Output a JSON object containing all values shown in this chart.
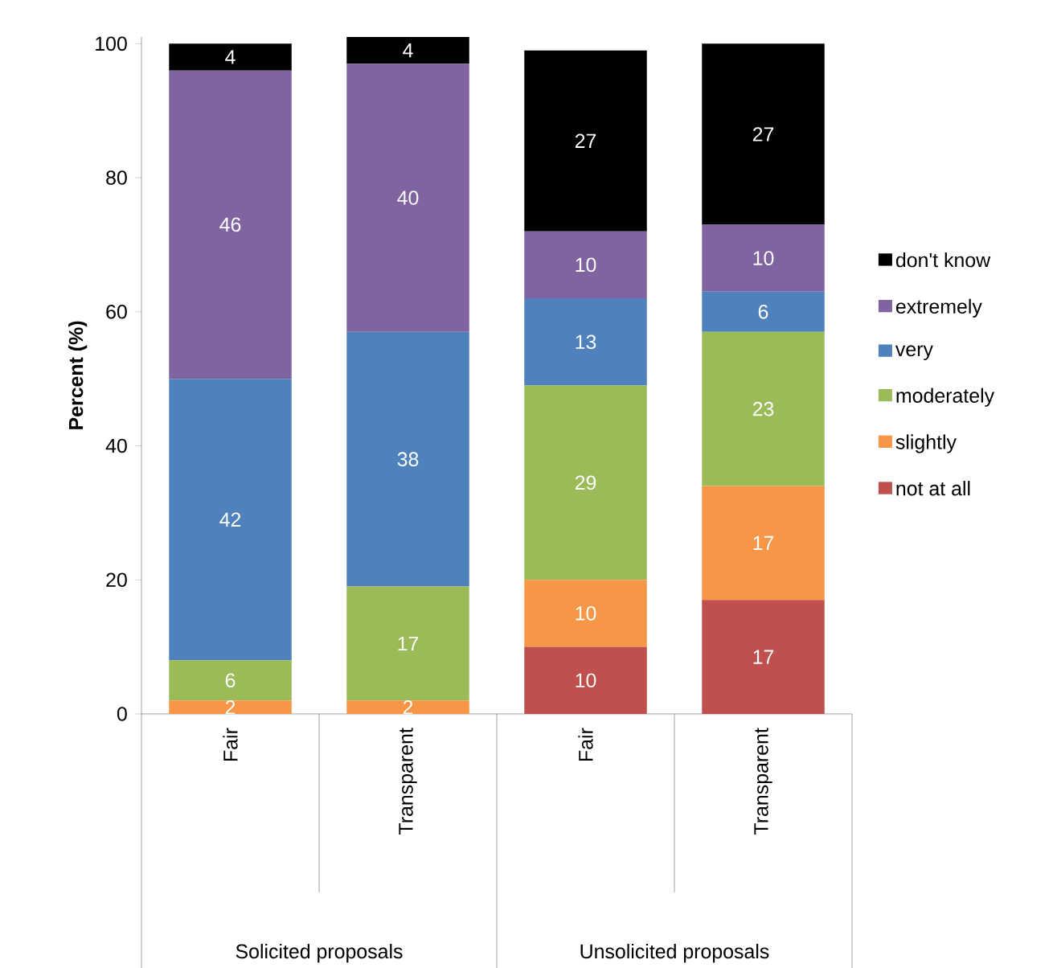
{
  "chart_data": {
    "type": "bar",
    "stacked": true,
    "ylabel": "Percent (%)",
    "categories": [
      "Fair",
      "Transparent",
      "Fair",
      "Transparent"
    ],
    "series": [
      {
        "name": "not at all",
        "color": "#c0504d",
        "values": [
          null,
          null,
          10,
          17
        ]
      },
      {
        "name": "slightly",
        "color": "#f79646",
        "values": [
          2,
          2,
          10,
          17
        ]
      },
      {
        "name": "moderately",
        "color": "#9bbb59",
        "values": [
          6,
          17,
          29,
          23
        ]
      },
      {
        "name": "very",
        "color": "#4f81bd",
        "values": [
          42,
          38,
          13,
          6
        ]
      },
      {
        "name": "extremely",
        "color": "#8064a2",
        "values": [
          46,
          40,
          10,
          10
        ]
      },
      {
        "name": "don't know",
        "color": "#000000",
        "values": [
          4,
          4,
          27,
          27
        ]
      }
    ],
    "ylim": [
      0,
      101
    ],
    "yticks": [
      0,
      20,
      40,
      60,
      80,
      100
    ],
    "data_labels": true,
    "legend": "right",
    "annotations": [
      "Solicited proposals",
      "Unsolicited proposals"
    ]
  }
}
